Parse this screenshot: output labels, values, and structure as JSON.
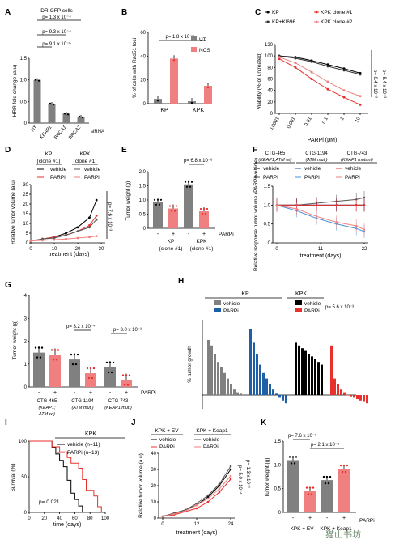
{
  "panels": {
    "A": {
      "letter": "A",
      "header": "DR-GFP cells",
      "ylabel": "HRR fold change (a.u)",
      "yticks": [
        "0",
        "0.5",
        "1.0",
        "1.5"
      ],
      "xlabels": [
        "NT",
        "KEAP1",
        "BRCA1",
        "BRCA2"
      ],
      "siRNA": "siRNA",
      "pvals": [
        "p= 1.3 x 10⁻⁴",
        "p= 9.3 x 10⁻⁴",
        "p= 9.1 x 10⁻⁶"
      ]
    },
    "B": {
      "letter": "B",
      "ylabel": "% of cells with Rad51 foci",
      "yticks": [
        "0",
        "20",
        "40",
        "60"
      ],
      "legend": [
        "UT",
        "NCS"
      ],
      "xlabels": [
        "KP",
        "KPK"
      ],
      "pval": "p= 1.8 x 10⁻³"
    },
    "C": {
      "letter": "C",
      "legend": [
        "KP",
        "KP+Kl696",
        "KPK clone #1",
        "KPK clone #2"
      ],
      "ylabel": "Viability (% of untreated)",
      "xlabel": "PARPi (μM)",
      "yticks": [
        "0",
        "20",
        "40",
        "60",
        "80",
        "100",
        "120"
      ],
      "xticks": [
        "0.0001",
        "0.001",
        "0.01",
        "0.1",
        "1",
        "10"
      ],
      "pvals": [
        "p= 8.4 x 10⁻³",
        "p= 8.4 x 10⁻³"
      ]
    },
    "D": {
      "letter": "D",
      "groups": [
        "KP",
        "KPK"
      ],
      "clones": [
        "(clone #1)",
        "(clone #1)"
      ],
      "legend": [
        "vehicle",
        "PARPi"
      ],
      "ylabel": "Relative tumor volume (a.u)",
      "xlabel": "treatment (days)",
      "yticks": [
        "0",
        "5",
        "10",
        "15",
        "20",
        "25",
        "30"
      ],
      "xticks": [
        "0",
        "10",
        "20",
        "30"
      ],
      "pval": "p= 7.6 x 10⁻³"
    },
    "E": {
      "letter": "E",
      "ylabel": "Tumor weight (g)",
      "yticks": [
        "0",
        "0.5",
        "1.0",
        "1.5",
        "2.0"
      ],
      "signs": [
        "-",
        "+",
        "-",
        "+"
      ],
      "parpi": "PARPi",
      "groups": [
        "KP",
        "KPK"
      ],
      "clones": [
        "(clone #1)",
        "(clone #1)"
      ],
      "pval": "p= 6.8 x 10⁻⁶"
    },
    "F": {
      "letter": "F",
      "lines": [
        "CTG-465",
        "CTG-1194",
        "CTG-743"
      ],
      "sub": [
        "(KEAP1;ATM wt)",
        "(ATM mut.)",
        "(KEAP1 mutant)"
      ],
      "legend": [
        "vehicle",
        "PARPi"
      ],
      "ylabel": "Relative response tumor volume (PARPi/vehicle)",
      "xlabel": "treatment (days)",
      "yticks": [
        "0",
        "0.5",
        "1.0",
        "1.5"
      ],
      "xticks": [
        "0",
        "11",
        "22"
      ]
    },
    "G": {
      "letter": "G",
      "ylabel": "Tumor weight (g)",
      "yticks": [
        "0",
        "1",
        "2",
        "3",
        "4"
      ],
      "signs": [
        "-",
        "+",
        "-",
        "+",
        "-",
        "+"
      ],
      "parpi": "PARPi",
      "groups": [
        "CTG-465",
        "CTG-1194",
        "CTG-743"
      ],
      "sub": [
        "(KEAP1;",
        "(ATM mut.)",
        "(KEAP1 mut.)"
      ],
      "sub2": [
        "ATM wt)",
        "",
        ""
      ],
      "pvals": [
        "p= 3.2 x 10⁻⁴",
        "p= 3.0 x 10⁻³"
      ]
    },
    "H": {
      "letter": "H",
      "groups": [
        "KP",
        "KPK"
      ],
      "legend": [
        "vehicle",
        "PARPi",
        "vehicle",
        "PARPi"
      ],
      "ylabel": "% tumor growth",
      "yticks": [
        "-50",
        "0",
        "50",
        "100",
        "150",
        "200",
        "600"
      ],
      "pval": "p= 5.6 x 10⁻³"
    },
    "I": {
      "letter": "I",
      "title": "KPK",
      "legend": [
        "vehicle (n=11)",
        "PARPi (n=13)"
      ],
      "ylabel": "Survival (%)",
      "xlabel": "time (days)",
      "yticks": [
        "0",
        "50",
        "100"
      ],
      "xticks": [
        "0",
        "20",
        "40",
        "60",
        "80",
        "100"
      ],
      "pval": "p= 0.021"
    },
    "J": {
      "letter": "J",
      "groups": [
        "KPK + EV",
        "KPK + Keap1"
      ],
      "legend": [
        "vehicle",
        "PARPi",
        "vehicle",
        "PARPi"
      ],
      "ylabel": "Relative tumor volume (a.u)",
      "xlabel": "treatment (days)",
      "yticks": [
        "0",
        "10",
        "20",
        "30",
        "40"
      ],
      "xticks": [
        "0",
        "12",
        "24"
      ],
      "pvals": [
        "p= 5.0 x 10⁻⁴",
        "p= 1.3 x 10⁻¹"
      ]
    },
    "K": {
      "letter": "K",
      "ylabel": "Tumor weight (g)",
      "yticks": [
        "0",
        "0.5",
        "1.0",
        "1.5"
      ],
      "signs": [
        "-",
        "+",
        "-",
        "+"
      ],
      "parpi": "PARPi",
      "groups": [
        "KPK + EV",
        "KPK + Keap1"
      ],
      "pvals": [
        "p= 7.6 x 10⁻⁵",
        "p= 2.1 x 10⁻⁵"
      ]
    }
  },
  "watermark": "猫山书坊",
  "chart_data": [
    {
      "panel": "A",
      "type": "bar",
      "categories": [
        "NT",
        "KEAP1",
        "BRCA1",
        "BRCA2"
      ],
      "values": [
        1.0,
        0.45,
        0.22,
        0.15
      ],
      "ylim": [
        0,
        1.5
      ],
      "color": "#808080"
    },
    {
      "panel": "B",
      "type": "bar",
      "categories": [
        "KP",
        "KPK"
      ],
      "series": [
        {
          "name": "UT",
          "values": [
            4,
            2
          ]
        },
        {
          "name": "NCS",
          "values": [
            38,
            15
          ]
        }
      ],
      "ylim": [
        0,
        60
      ]
    },
    {
      "panel": "C",
      "type": "line",
      "x": [
        0.0001,
        0.001,
        0.01,
        0.1,
        1,
        10
      ],
      "series": [
        {
          "name": "KP",
          "values": [
            100,
            98,
            92,
            85,
            78,
            70
          ]
        },
        {
          "name": "KP+Kl696",
          "values": [
            100,
            96,
            90,
            82,
            75,
            68
          ]
        },
        {
          "name": "KPK clone #1",
          "values": [
            95,
            80,
            60,
            42,
            28,
            15
          ]
        },
        {
          "name": "KPK clone #2",
          "values": [
            98,
            88,
            72,
            55,
            40,
            30
          ]
        }
      ],
      "ylim": [
        0,
        120
      ]
    },
    {
      "panel": "D",
      "type": "line",
      "x": [
        0,
        5,
        10,
        15,
        20,
        25,
        28
      ],
      "series": [
        {
          "name": "KP vehicle",
          "values": [
            1,
            2,
            3,
            5,
            8,
            13,
            22
          ]
        },
        {
          "name": "KP PARPi",
          "values": [
            1,
            2,
            3,
            4,
            6,
            9,
            14
          ]
        },
        {
          "name": "KPK vehicle",
          "values": [
            1,
            2,
            2.5,
            4,
            6,
            8,
            12
          ]
        },
        {
          "name": "KPK PARPi",
          "values": [
            1,
            1.3,
            1.6,
            2,
            2.5,
            3,
            3.5
          ]
        }
      ],
      "ylim": [
        0,
        30
      ]
    },
    {
      "panel": "E",
      "type": "bar",
      "categories": [
        "KP -",
        "KP +",
        "KPK -",
        "KPK +"
      ],
      "values": [
        0.92,
        0.7,
        1.55,
        0.6
      ],
      "ylim": [
        0,
        2.0
      ]
    },
    {
      "panel": "F",
      "type": "line",
      "x": [
        0,
        5,
        10,
        15,
        20,
        22
      ],
      "series": [
        {
          "name": "CTG-465 vehicle",
          "values": [
            1,
            1,
            1,
            1,
            1,
            1
          ]
        },
        {
          "name": "CTG-465 PARPi",
          "values": [
            1,
            1,
            1.05,
            1.1,
            1.15,
            1.2
          ]
        },
        {
          "name": "CTG-1194 vehicle",
          "values": [
            1,
            1,
            1,
            1,
            1,
            1
          ]
        },
        {
          "name": "CTG-1194 PARPi",
          "values": [
            1,
            0.85,
            0.65,
            0.5,
            0.38,
            0.3
          ]
        },
        {
          "name": "CTG-743 vehicle",
          "values": [
            1,
            1,
            1,
            1,
            1,
            1
          ]
        },
        {
          "name": "CTG-743 PARPi",
          "values": [
            1,
            0.9,
            0.7,
            0.55,
            0.45,
            0.35
          ]
        }
      ],
      "ylim": [
        0,
        1.5
      ]
    },
    {
      "panel": "G",
      "type": "bar",
      "categories": [
        "465 -",
        "465 +",
        "1194 -",
        "1194 +",
        "743 -",
        "743 +"
      ],
      "values": [
        1.5,
        1.4,
        1.2,
        0.6,
        0.85,
        0.3
      ],
      "ylim": [
        0,
        4
      ]
    },
    {
      "panel": "H",
      "type": "bar",
      "series": [
        {
          "name": "KP vehicle",
          "values": [
            200,
            180,
            150,
            120,
            100,
            80,
            60,
            40,
            20,
            10,
            5
          ]
        },
        {
          "name": "KP PARPi",
          "values": [
            600,
            190,
            150,
            110,
            80,
            60,
            40,
            20,
            5,
            -10,
            -20,
            -30
          ]
        },
        {
          "name": "KPK vehicle",
          "values": [
            190,
            180,
            170,
            160,
            150,
            140,
            130,
            120,
            110
          ]
        },
        {
          "name": "KPK PARPi",
          "values": [
            180,
            60,
            40,
            20,
            10,
            0,
            -5,
            -10,
            -15,
            -20,
            -25,
            -30
          ]
        }
      ],
      "ylim": [
        -50,
        600
      ]
    },
    {
      "panel": "I",
      "type": "line",
      "series": [
        {
          "name": "vehicle (n=11)",
          "x": [
            0,
            25,
            30,
            35,
            40,
            45,
            50,
            55,
            60,
            65,
            70
          ],
          "values": [
            100,
            100,
            91,
            82,
            73,
            64,
            45,
            27,
            18,
            9,
            0
          ]
        },
        {
          "name": "PARPi (n=13)",
          "x": [
            0,
            25,
            30,
            40,
            50,
            55,
            65,
            70,
            75,
            85,
            90,
            95
          ],
          "values": [
            100,
            100,
            92,
            85,
            77,
            69,
            62,
            46,
            31,
            23,
            8,
            0
          ]
        }
      ],
      "ylim": [
        0,
        100
      ]
    },
    {
      "panel": "J",
      "type": "line",
      "x": [
        0,
        4,
        8,
        12,
        16,
        20,
        24
      ],
      "series": [
        {
          "name": "KPK + EV vehicle",
          "values": [
            1,
            3,
            5,
            8,
            13,
            20,
            30
          ]
        },
        {
          "name": "KPK + EV PARPi",
          "values": [
            1,
            2,
            4,
            6,
            10,
            16,
            24
          ]
        },
        {
          "name": "KPK + Keap1 vehicle",
          "values": [
            1,
            3,
            5,
            9,
            14,
            21,
            32
          ]
        },
        {
          "name": "KPK + Keap1 PARPi",
          "values": [
            1,
            2.5,
            4.5,
            8,
            12,
            18,
            26
          ]
        }
      ],
      "ylim": [
        0,
        40
      ]
    },
    {
      "panel": "K",
      "type": "bar",
      "categories": [
        "EV -",
        "EV +",
        "Keap1 -",
        "Keap1 +"
      ],
      "values": [
        1.1,
        0.45,
        0.68,
        0.92
      ],
      "ylim": [
        0,
        1.5
      ]
    }
  ]
}
